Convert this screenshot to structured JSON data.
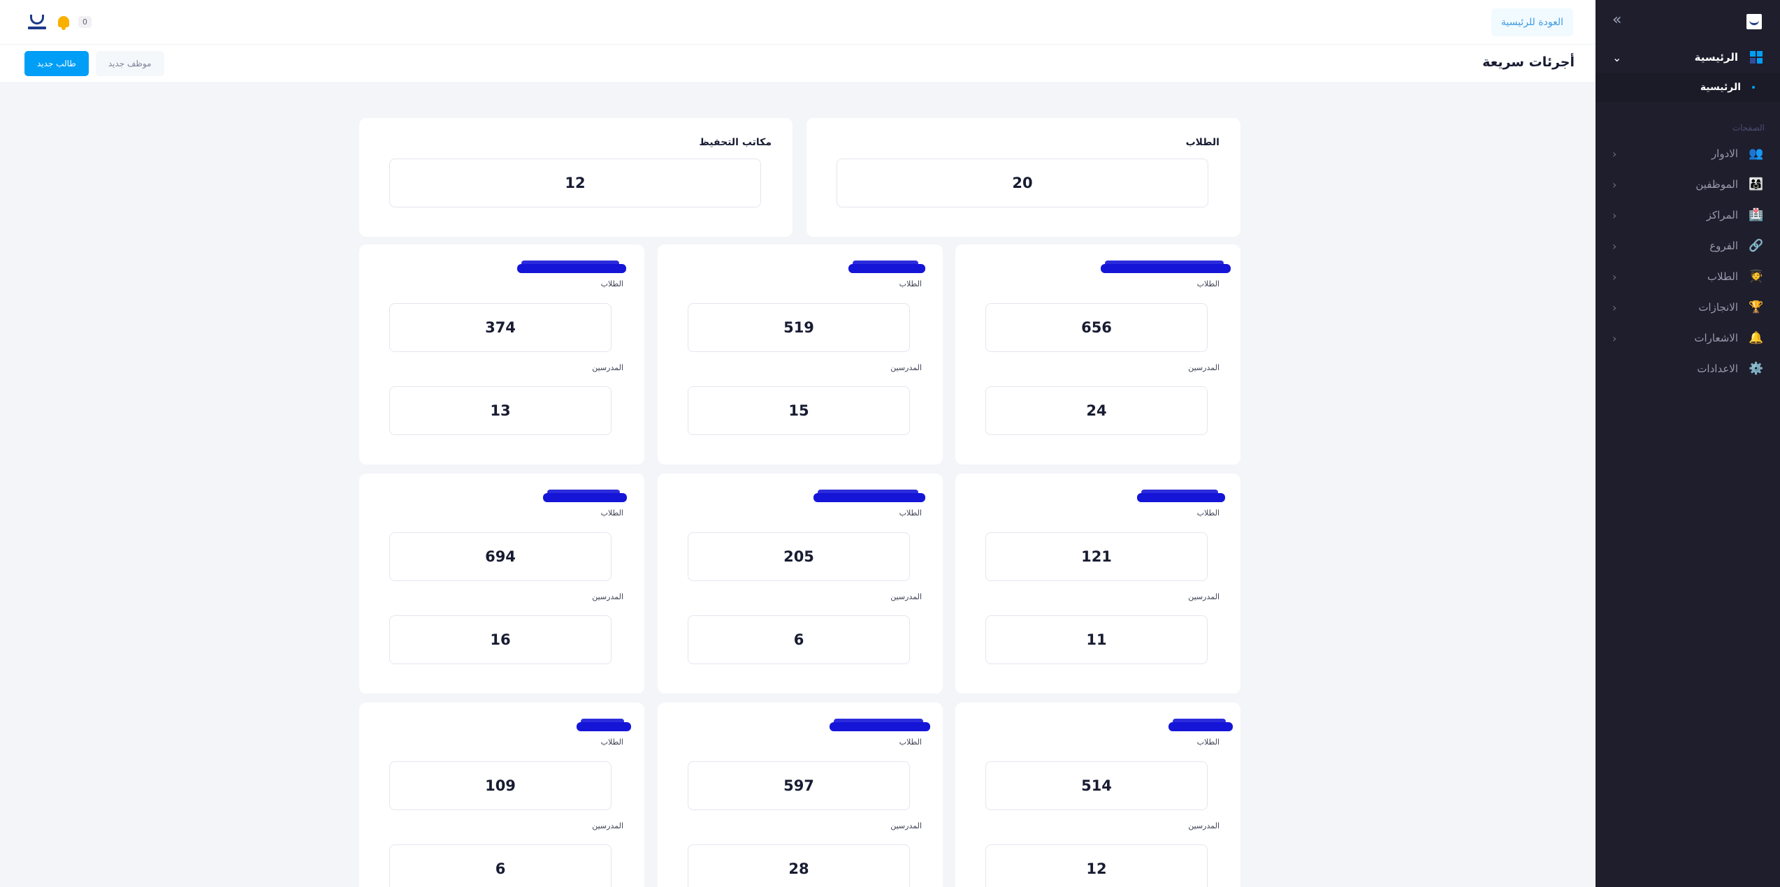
{
  "header": {
    "back_button": "العودة للرئيسية",
    "notification_count": "0"
  },
  "toolbar": {
    "title": "أجرئات سريعة",
    "new_student": "طالب جديد",
    "new_employee": "موظف جديد"
  },
  "sidebar": {
    "home_label": "الرئيسية",
    "home_sub": "الرئيسية",
    "section_label": "الصفحات",
    "items": [
      {
        "label": "الادوار",
        "icon": "roles-icon"
      },
      {
        "label": "الموظفين",
        "icon": "employees-icon"
      },
      {
        "label": "المراكز",
        "icon": "centers-icon"
      },
      {
        "label": "الفروع",
        "icon": "branches-icon"
      },
      {
        "label": "الطلاب",
        "icon": "students-icon"
      },
      {
        "label": "الانجازات",
        "icon": "achievements-icon"
      },
      {
        "label": "الاشعارات",
        "icon": "notifications-icon"
      },
      {
        "label": "الاعدادات",
        "icon": "settings-icon"
      }
    ]
  },
  "summary": {
    "students_label": "الطلاب",
    "students_value": "20",
    "offices_label": "مكاتب التحفيظ",
    "offices_value": "12"
  },
  "labels": {
    "students": "الطلاب",
    "teachers": "المدرسين"
  },
  "centers": [
    {
      "students": "656",
      "teachers": "24"
    },
    {
      "students": "519",
      "teachers": "15"
    },
    {
      "students": "374",
      "teachers": "13"
    },
    {
      "students": "121",
      "teachers": "11"
    },
    {
      "students": "205",
      "teachers": "6"
    },
    {
      "students": "694",
      "teachers": "16"
    },
    {
      "students": "514",
      "teachers": "12"
    },
    {
      "students": "597",
      "teachers": "28"
    },
    {
      "students": "109",
      "teachers": "6"
    }
  ],
  "colors": {
    "primary": "#009ef7",
    "sidebar_bg": "#1e1e2d",
    "page_bg": "#f3f5f9",
    "redaction": "#1515d8"
  }
}
